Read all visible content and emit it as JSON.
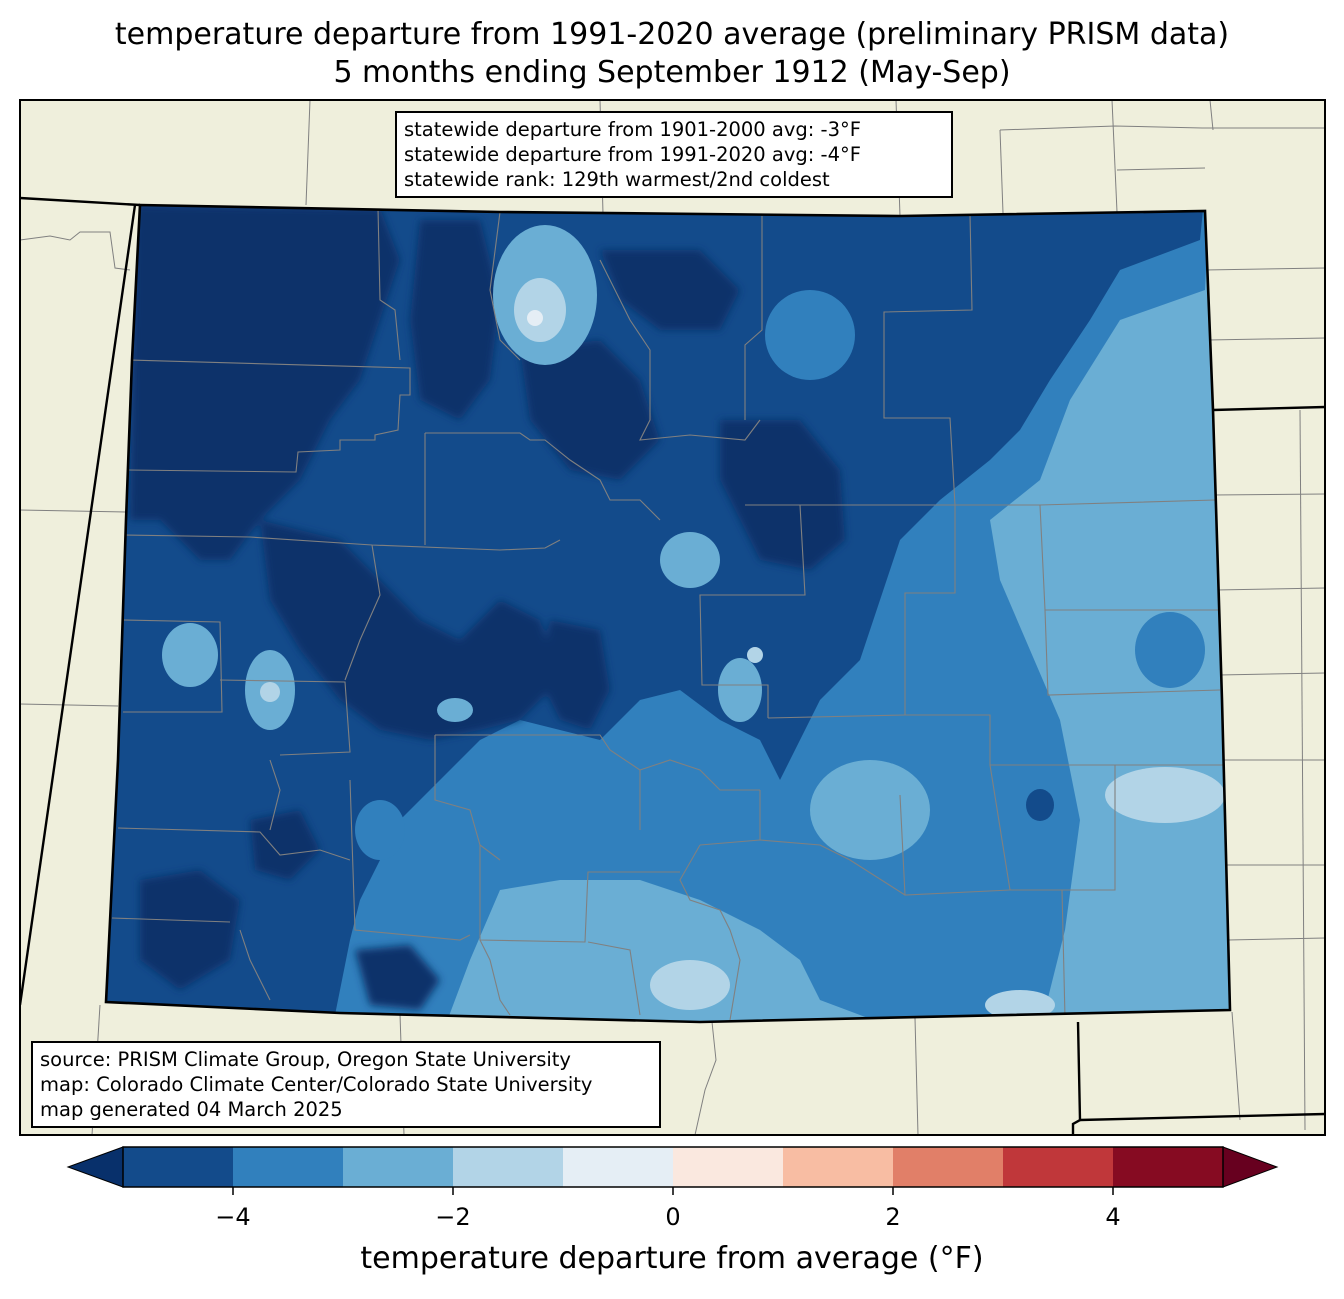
{
  "title": {
    "line1": "temperature departure from 1991-2020 average (preliminary PRISM data)",
    "line2": "5 months ending September 1912 (May-Sep)"
  },
  "stats": {
    "line1": "statewide departure from 1901-2000 avg: -3°F",
    "line2": "statewide departure from 1991-2020 avg: -4°F",
    "line3": "statewide rank: 129th warmest/2nd coldest"
  },
  "source": {
    "line1": "source: PRISM Climate Group, Oregon State University",
    "line2": "map: Colorado Climate Center/Colorado State University",
    "line3": "map generated 04 March 2025"
  },
  "colorbar": {
    "label": "temperature departure from average (°F)",
    "ticks": [
      "−4",
      "−2",
      "0",
      "2",
      "4"
    ],
    "colors": [
      "#08306b",
      "#134b8b",
      "#3180bd",
      "#6aaed4",
      "#b2d4e7",
      "#e5eef5",
      "#fae8df",
      "#f8bda3",
      "#e17f68",
      "#c0373a",
      "#860b22",
      "#67001f"
    ]
  },
  "map": {
    "land_color": "#efefdc",
    "border_color": "#000000",
    "county_color": "#808080"
  }
}
